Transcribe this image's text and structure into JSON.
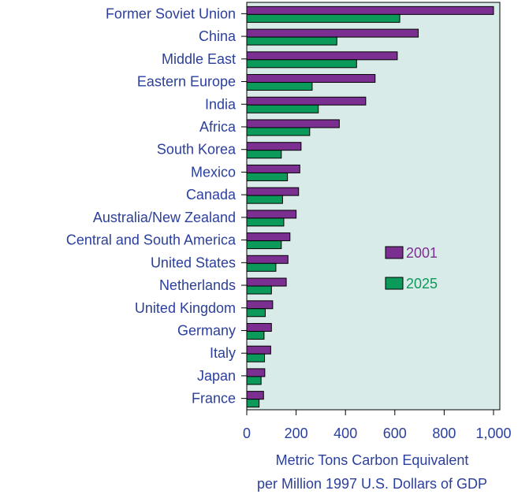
{
  "chart_data": {
    "type": "bar",
    "orientation": "horizontal",
    "title": "",
    "categories": [
      "Former Soviet Union",
      "China",
      "Middle East",
      "Eastern Europe",
      "India",
      "Africa",
      "South Korea",
      "Mexico",
      "Canada",
      "Australia/New Zealand",
      "Central and South America",
      "United States",
      "Netherlands",
      "United Kingdom",
      "Germany",
      "Italy",
      "Japan",
      "France"
    ],
    "series": [
      {
        "name": "2001",
        "color": "#7b2f91",
        "values": [
          1000,
          695,
          610,
          520,
          482,
          375,
          220,
          215,
          210,
          200,
          175,
          167,
          160,
          105,
          100,
          97,
          73,
          68
        ]
      },
      {
        "name": "2025",
        "color": "#0c9a5a",
        "values": [
          620,
          365,
          445,
          265,
          290,
          255,
          140,
          165,
          145,
          150,
          140,
          118,
          100,
          75,
          70,
          72,
          58,
          50
        ]
      }
    ],
    "xlim": [
      0,
      1000
    ],
    "xticks": [
      "0",
      "200",
      "400",
      "600",
      "800",
      "1,000"
    ],
    "xtick_values": [
      0,
      200,
      400,
      600,
      800,
      1000
    ],
    "xlabel_lines": [
      "Metric Tons Carbon Equivalent",
      "per Million 1997 U.S. Dollars of GDP"
    ],
    "ylabel": "",
    "legend_position": "right",
    "plot_background": "#d9ebe8",
    "text_color": "#2b3f9c",
    "grid": false
  }
}
